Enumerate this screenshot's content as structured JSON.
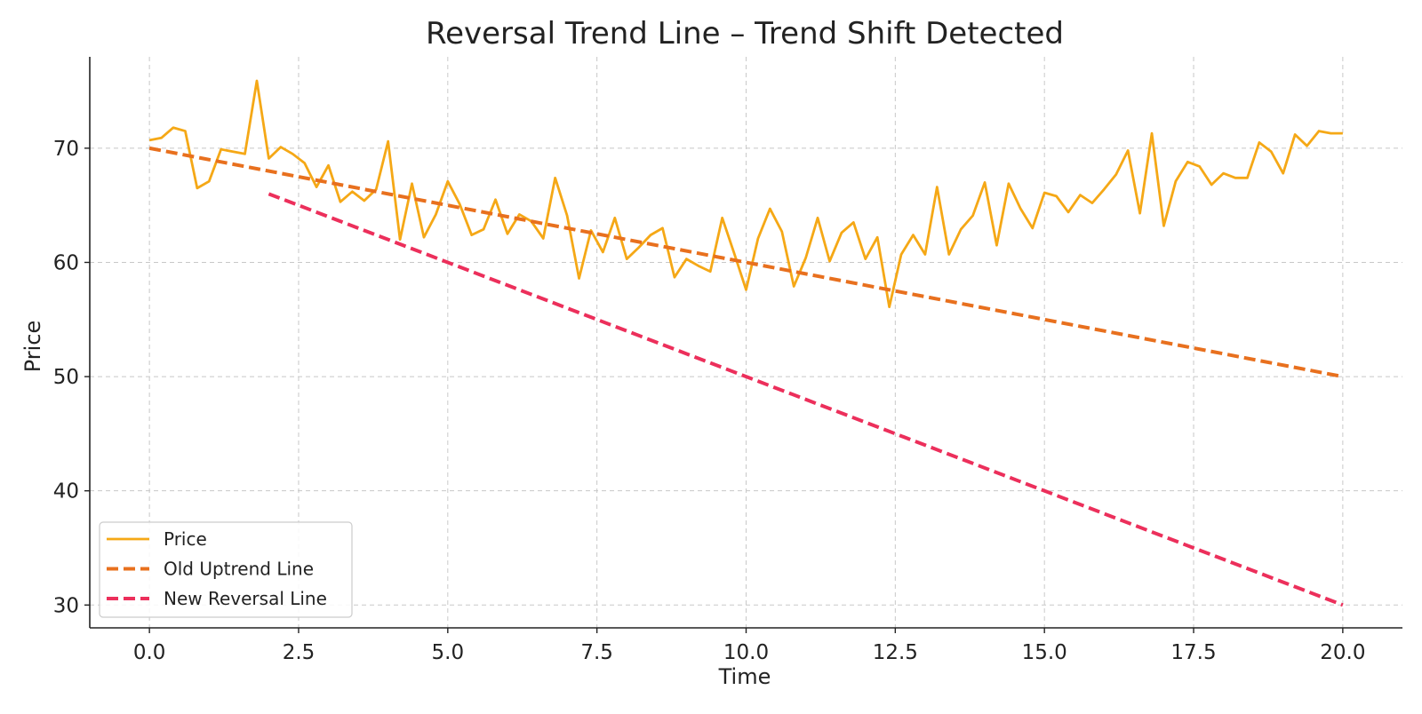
{
  "chart_data": {
    "type": "line",
    "title": "Reversal Trend Line – Trend Shift Detected",
    "xlabel": "Time",
    "ylabel": "Price",
    "xlim": [
      -1,
      21
    ],
    "ylim": [
      28,
      78
    ],
    "xticks": [
      0.0,
      2.5,
      5.0,
      7.5,
      10.0,
      12.5,
      15.0,
      17.5,
      20.0
    ],
    "xtick_labels": [
      "0.0",
      "2.5",
      "5.0",
      "7.5",
      "10.0",
      "12.5",
      "15.0",
      "17.5",
      "20.0"
    ],
    "yticks": [
      30,
      40,
      50,
      60,
      70
    ],
    "ytick_labels": [
      "30",
      "40",
      "50",
      "60",
      "70"
    ],
    "grid": true,
    "legend_position": "lower-left",
    "series": [
      {
        "name": "Price",
        "color": "#F5A816",
        "style": "solid",
        "x": [
          0.0,
          0.2,
          0.4,
          0.6,
          0.8,
          1.0,
          1.2,
          1.4,
          1.6,
          1.8,
          2.0,
          2.2,
          2.4,
          2.6,
          2.8,
          3.0,
          3.2,
          3.4,
          3.6,
          3.8,
          4.0,
          4.2,
          4.4,
          4.6,
          4.8,
          5.0,
          5.2,
          5.4,
          5.6,
          5.8,
          6.0,
          6.2,
          6.4,
          6.6,
          6.8,
          7.0,
          7.2,
          7.4,
          7.6,
          7.8,
          8.0,
          8.2,
          8.4,
          8.6,
          8.8,
          9.0,
          9.2,
          9.4,
          9.6,
          9.8,
          10.0,
          10.2,
          10.4,
          10.6,
          10.8,
          11.0,
          11.2,
          11.4,
          11.6,
          11.8,
          12.0,
          12.2,
          12.4,
          12.6,
          12.8,
          13.0,
          13.2,
          13.4,
          13.6,
          13.8,
          14.0,
          14.2,
          14.4,
          14.6,
          14.8,
          15.0,
          15.2,
          15.4,
          15.6,
          15.8,
          16.0,
          16.2,
          16.4,
          16.6,
          16.8,
          17.0,
          17.2,
          17.4,
          17.6,
          17.8,
          18.0,
          18.2,
          18.4,
          18.6,
          18.8,
          19.0,
          19.2,
          19.4,
          19.6,
          19.8,
          20.0
        ],
        "values": [
          70.7,
          70.9,
          71.8,
          71.5,
          66.5,
          67.1,
          69.9,
          69.7,
          69.5,
          75.9,
          69.1,
          70.1,
          69.5,
          68.7,
          66.6,
          68.5,
          65.3,
          66.2,
          65.4,
          66.4,
          70.6,
          62.0,
          66.9,
          62.2,
          64.2,
          67.1,
          65.1,
          62.4,
          62.9,
          65.5,
          62.5,
          64.2,
          63.6,
          62.1,
          67.4,
          64.1,
          58.6,
          62.8,
          60.9,
          63.9,
          60.3,
          61.3,
          62.4,
          63.0,
          58.7,
          60.3,
          59.7,
          59.2,
          63.9,
          60.8,
          57.6,
          62.1,
          64.7,
          62.7,
          57.9,
          60.4,
          63.9,
          60.1,
          62.6,
          63.5,
          60.3,
          62.2,
          56.1,
          60.7,
          62.4,
          60.7,
          66.6,
          60.7,
          62.9,
          64.1,
          67.0,
          61.5,
          66.9,
          64.7,
          63.0,
          66.1,
          65.8,
          64.4,
          65.9,
          65.2,
          66.4,
          67.7,
          69.8,
          64.3,
          71.3,
          63.2,
          67.1,
          68.8,
          68.4,
          66.8,
          67.8,
          67.4,
          67.4,
          70.5,
          69.7,
          67.8,
          71.2,
          70.2,
          71.5,
          71.3,
          71.3
        ]
      },
      {
        "name": "Old Uptrend Line",
        "color": "#E8701E",
        "style": "dashed",
        "x": [
          0,
          20
        ],
        "values": [
          70,
          50
        ]
      },
      {
        "name": "New Reversal Line",
        "color": "#EC2F5B",
        "style": "dashed",
        "x": [
          2,
          20
        ],
        "values": [
          66,
          30
        ]
      }
    ]
  }
}
